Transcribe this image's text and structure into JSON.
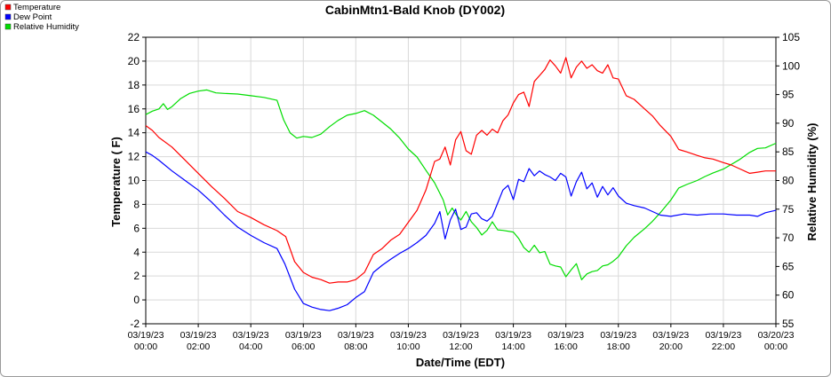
{
  "chart_data": {
    "type": "line",
    "title": "CabinMtn1-Bald Knob (DY002)",
    "xlabel": "Date/Time (EDT)",
    "ylabel": "Temperature ( F)",
    "y2label": "Relative Humidity (%)",
    "ylim": [
      -2,
      22
    ],
    "y2lim": [
      55,
      105
    ],
    "yticks": [
      "-2",
      "0",
      "2",
      "4",
      "6",
      "8",
      "10",
      "12",
      "14",
      "16",
      "18",
      "20",
      "22"
    ],
    "y2ticks": [
      "55",
      "60",
      "65",
      "70",
      "75",
      "80",
      "85",
      "90",
      "95",
      "100",
      "105"
    ],
    "xlim_hours": [
      0,
      24
    ],
    "x_ticks": [
      {
        "h": 0,
        "date": "03/19/23",
        "time": "00:00"
      },
      {
        "h": 2,
        "date": "03/19/23",
        "time": "02:00"
      },
      {
        "h": 4,
        "date": "03/19/23",
        "time": "04:00"
      },
      {
        "h": 6,
        "date": "03/19/23",
        "time": "06:00"
      },
      {
        "h": 8,
        "date": "03/19/23",
        "time": "08:00"
      },
      {
        "h": 10,
        "date": "03/19/23",
        "time": "10:00"
      },
      {
        "h": 12,
        "date": "03/19/23",
        "time": "12:00"
      },
      {
        "h": 14,
        "date": "03/19/23",
        "time": "14:00"
      },
      {
        "h": 16,
        "date": "03/19/23",
        "time": "16:00"
      },
      {
        "h": 18,
        "date": "03/19/23",
        "time": "18:00"
      },
      {
        "h": 20,
        "date": "03/19/23",
        "time": "20:00"
      },
      {
        "h": 22,
        "date": "03/19/23",
        "time": "22:00"
      },
      {
        "h": 24,
        "date": "03/20/23",
        "time": "00:00"
      }
    ],
    "grid": true,
    "legend_position": "top-left",
    "series": [
      {
        "name": "Temperature",
        "color": "#ff0000",
        "axis": "left",
        "points": [
          [
            0,
            14.6
          ],
          [
            0.25,
            14.2
          ],
          [
            0.5,
            13.6
          ],
          [
            1,
            12.8
          ],
          [
            1.5,
            11.7
          ],
          [
            2,
            10.6
          ],
          [
            2.5,
            9.5
          ],
          [
            3,
            8.5
          ],
          [
            3.5,
            7.4
          ],
          [
            4,
            6.9
          ],
          [
            4.5,
            6.3
          ],
          [
            5,
            5.8
          ],
          [
            5.33,
            5.3
          ],
          [
            5.67,
            3.2
          ],
          [
            6,
            2.3
          ],
          [
            6.33,
            1.9
          ],
          [
            6.67,
            1.7
          ],
          [
            7,
            1.4
          ],
          [
            7.33,
            1.5
          ],
          [
            7.67,
            1.5
          ],
          [
            8,
            1.7
          ],
          [
            8.33,
            2.3
          ],
          [
            8.67,
            3.8
          ],
          [
            9,
            4.3
          ],
          [
            9.33,
            5.0
          ],
          [
            9.67,
            5.5
          ],
          [
            10,
            6.5
          ],
          [
            10.33,
            7.5
          ],
          [
            10.67,
            9.2
          ],
          [
            11,
            11.6
          ],
          [
            11.2,
            11.8
          ],
          [
            11.4,
            12.8
          ],
          [
            11.6,
            11.3
          ],
          [
            11.8,
            13.4
          ],
          [
            12,
            14.1
          ],
          [
            12.2,
            12.5
          ],
          [
            12.4,
            12.2
          ],
          [
            12.6,
            13.8
          ],
          [
            12.8,
            14.2
          ],
          [
            13,
            13.8
          ],
          [
            13.2,
            14.3
          ],
          [
            13.4,
            14.0
          ],
          [
            13.6,
            15.0
          ],
          [
            13.8,
            15.5
          ],
          [
            14,
            16.5
          ],
          [
            14.2,
            17.2
          ],
          [
            14.4,
            17.4
          ],
          [
            14.6,
            16.2
          ],
          [
            14.8,
            18.3
          ],
          [
            15,
            18.8
          ],
          [
            15.2,
            19.3
          ],
          [
            15.4,
            20.1
          ],
          [
            15.6,
            19.6
          ],
          [
            15.8,
            19.0
          ],
          [
            16,
            20.3
          ],
          [
            16.2,
            18.6
          ],
          [
            16.4,
            19.5
          ],
          [
            16.6,
            20.0
          ],
          [
            16.8,
            19.4
          ],
          [
            17,
            19.7
          ],
          [
            17.2,
            19.2
          ],
          [
            17.4,
            19.0
          ],
          [
            17.6,
            19.7
          ],
          [
            17.8,
            18.6
          ],
          [
            18,
            18.5
          ],
          [
            18.3,
            17.1
          ],
          [
            18.6,
            16.8
          ],
          [
            19,
            16.0
          ],
          [
            19.3,
            15.4
          ],
          [
            19.6,
            14.6
          ],
          [
            20,
            13.7
          ],
          [
            20.3,
            12.6
          ],
          [
            20.6,
            12.4
          ],
          [
            21,
            12.1
          ],
          [
            21.3,
            11.9
          ],
          [
            21.6,
            11.8
          ],
          [
            22,
            11.5
          ],
          [
            22.3,
            11.3
          ],
          [
            22.6,
            11.0
          ],
          [
            23,
            10.6
          ],
          [
            23.3,
            10.7
          ],
          [
            23.6,
            10.8
          ],
          [
            24,
            10.8
          ]
        ]
      },
      {
        "name": "Dew Point",
        "color": "#0000ff",
        "axis": "left",
        "points": [
          [
            0,
            12.4
          ],
          [
            0.25,
            12.1
          ],
          [
            0.5,
            11.7
          ],
          [
            1,
            10.8
          ],
          [
            1.5,
            10.0
          ],
          [
            2,
            9.2
          ],
          [
            2.5,
            8.2
          ],
          [
            3,
            7.1
          ],
          [
            3.5,
            6.1
          ],
          [
            4,
            5.4
          ],
          [
            4.5,
            4.8
          ],
          [
            5,
            4.3
          ],
          [
            5.3,
            3.0
          ],
          [
            5.67,
            0.9
          ],
          [
            6,
            -0.3
          ],
          [
            6.33,
            -0.6
          ],
          [
            6.67,
            -0.8
          ],
          [
            7,
            -0.9
          ],
          [
            7.33,
            -0.7
          ],
          [
            7.67,
            -0.4
          ],
          [
            8,
            0.2
          ],
          [
            8.33,
            0.7
          ],
          [
            8.67,
            2.3
          ],
          [
            9,
            2.9
          ],
          [
            9.33,
            3.4
          ],
          [
            9.67,
            3.9
          ],
          [
            10,
            4.3
          ],
          [
            10.33,
            4.8
          ],
          [
            10.67,
            5.4
          ],
          [
            11,
            6.4
          ],
          [
            11.2,
            7.4
          ],
          [
            11.4,
            5.1
          ],
          [
            11.6,
            6.7
          ],
          [
            11.8,
            7.6
          ],
          [
            12,
            5.9
          ],
          [
            12.2,
            6.1
          ],
          [
            12.4,
            7.2
          ],
          [
            12.6,
            7.3
          ],
          [
            12.8,
            6.8
          ],
          [
            13,
            6.6
          ],
          [
            13.2,
            7.0
          ],
          [
            13.4,
            8.1
          ],
          [
            13.6,
            9.2
          ],
          [
            13.8,
            9.6
          ],
          [
            14,
            8.4
          ],
          [
            14.2,
            10.1
          ],
          [
            14.4,
            9.9
          ],
          [
            14.6,
            11.0
          ],
          [
            14.8,
            10.4
          ],
          [
            15,
            10.8
          ],
          [
            15.2,
            10.5
          ],
          [
            15.4,
            10.3
          ],
          [
            15.6,
            10.0
          ],
          [
            15.8,
            10.6
          ],
          [
            16,
            10.3
          ],
          [
            16.2,
            8.7
          ],
          [
            16.4,
            9.9
          ],
          [
            16.6,
            10.7
          ],
          [
            16.8,
            9.3
          ],
          [
            17,
            9.8
          ],
          [
            17.2,
            8.6
          ],
          [
            17.4,
            9.5
          ],
          [
            17.6,
            8.8
          ],
          [
            17.8,
            9.4
          ],
          [
            18,
            8.7
          ],
          [
            18.3,
            8.1
          ],
          [
            18.6,
            7.9
          ],
          [
            19,
            7.7
          ],
          [
            19.3,
            7.4
          ],
          [
            19.6,
            7.1
          ],
          [
            20,
            7.0
          ],
          [
            20.5,
            7.2
          ],
          [
            21,
            7.1
          ],
          [
            21.5,
            7.2
          ],
          [
            22,
            7.2
          ],
          [
            22.5,
            7.1
          ],
          [
            23,
            7.1
          ],
          [
            23.3,
            7.0
          ],
          [
            23.6,
            7.3
          ],
          [
            24,
            7.5
          ]
        ]
      },
      {
        "name": "Relative Humidity",
        "color": "#00dd00",
        "axis": "right",
        "points": [
          [
            0,
            91.5
          ],
          [
            0.25,
            92.1
          ],
          [
            0.5,
            92.5
          ],
          [
            0.67,
            93.4
          ],
          [
            0.83,
            92.4
          ],
          [
            1,
            92.9
          ],
          [
            1.33,
            94.3
          ],
          [
            1.67,
            95.2
          ],
          [
            2,
            95.6
          ],
          [
            2.33,
            95.8
          ],
          [
            2.67,
            95.3
          ],
          [
            3,
            95.2
          ],
          [
            3.5,
            95.1
          ],
          [
            4,
            94.8
          ],
          [
            4.5,
            94.5
          ],
          [
            5,
            94.0
          ],
          [
            5.25,
            90.6
          ],
          [
            5.5,
            88.3
          ],
          [
            5.75,
            87.4
          ],
          [
            6,
            87.7
          ],
          [
            6.33,
            87.5
          ],
          [
            6.67,
            88.1
          ],
          [
            7,
            89.4
          ],
          [
            7.33,
            90.5
          ],
          [
            7.67,
            91.4
          ],
          [
            8,
            91.7
          ],
          [
            8.33,
            92.2
          ],
          [
            8.67,
            91.4
          ],
          [
            9,
            90.2
          ],
          [
            9.33,
            89.0
          ],
          [
            9.67,
            87.4
          ],
          [
            10,
            85.5
          ],
          [
            10.33,
            84.1
          ],
          [
            10.67,
            81.8
          ],
          [
            11,
            79.6
          ],
          [
            11.33,
            76.6
          ],
          [
            11.5,
            74.0
          ],
          [
            11.67,
            75.2
          ],
          [
            11.83,
            74.0
          ],
          [
            12,
            73.1
          ],
          [
            12.2,
            74.6
          ],
          [
            12.4,
            72.8
          ],
          [
            12.6,
            71.8
          ],
          [
            12.8,
            70.5
          ],
          [
            13,
            71.3
          ],
          [
            13.2,
            72.8
          ],
          [
            13.4,
            71.4
          ],
          [
            13.6,
            71.3
          ],
          [
            14,
            71.0
          ],
          [
            14.2,
            69.9
          ],
          [
            14.4,
            68.3
          ],
          [
            14.6,
            67.5
          ],
          [
            14.8,
            68.7
          ],
          [
            15,
            67.4
          ],
          [
            15.2,
            67.6
          ],
          [
            15.4,
            65.4
          ],
          [
            15.6,
            65.1
          ],
          [
            15.8,
            64.9
          ],
          [
            16,
            63.2
          ],
          [
            16.2,
            64.4
          ],
          [
            16.4,
            65.5
          ],
          [
            16.6,
            62.7
          ],
          [
            16.8,
            63.7
          ],
          [
            17,
            64.1
          ],
          [
            17.2,
            64.3
          ],
          [
            17.4,
            65.1
          ],
          [
            17.6,
            65.3
          ],
          [
            17.8,
            65.9
          ],
          [
            18,
            66.7
          ],
          [
            18.3,
            68.6
          ],
          [
            18.6,
            70.1
          ],
          [
            19,
            71.6
          ],
          [
            19.3,
            72.9
          ],
          [
            19.6,
            74.4
          ],
          [
            20,
            76.6
          ],
          [
            20.3,
            78.7
          ],
          [
            20.6,
            79.3
          ],
          [
            21,
            80.0
          ],
          [
            21.3,
            80.7
          ],
          [
            21.6,
            81.3
          ],
          [
            22,
            82.0
          ],
          [
            22.3,
            82.8
          ],
          [
            22.6,
            83.6
          ],
          [
            23,
            84.9
          ],
          [
            23.3,
            85.6
          ],
          [
            23.6,
            85.7
          ],
          [
            24,
            86.5
          ]
        ]
      }
    ]
  }
}
